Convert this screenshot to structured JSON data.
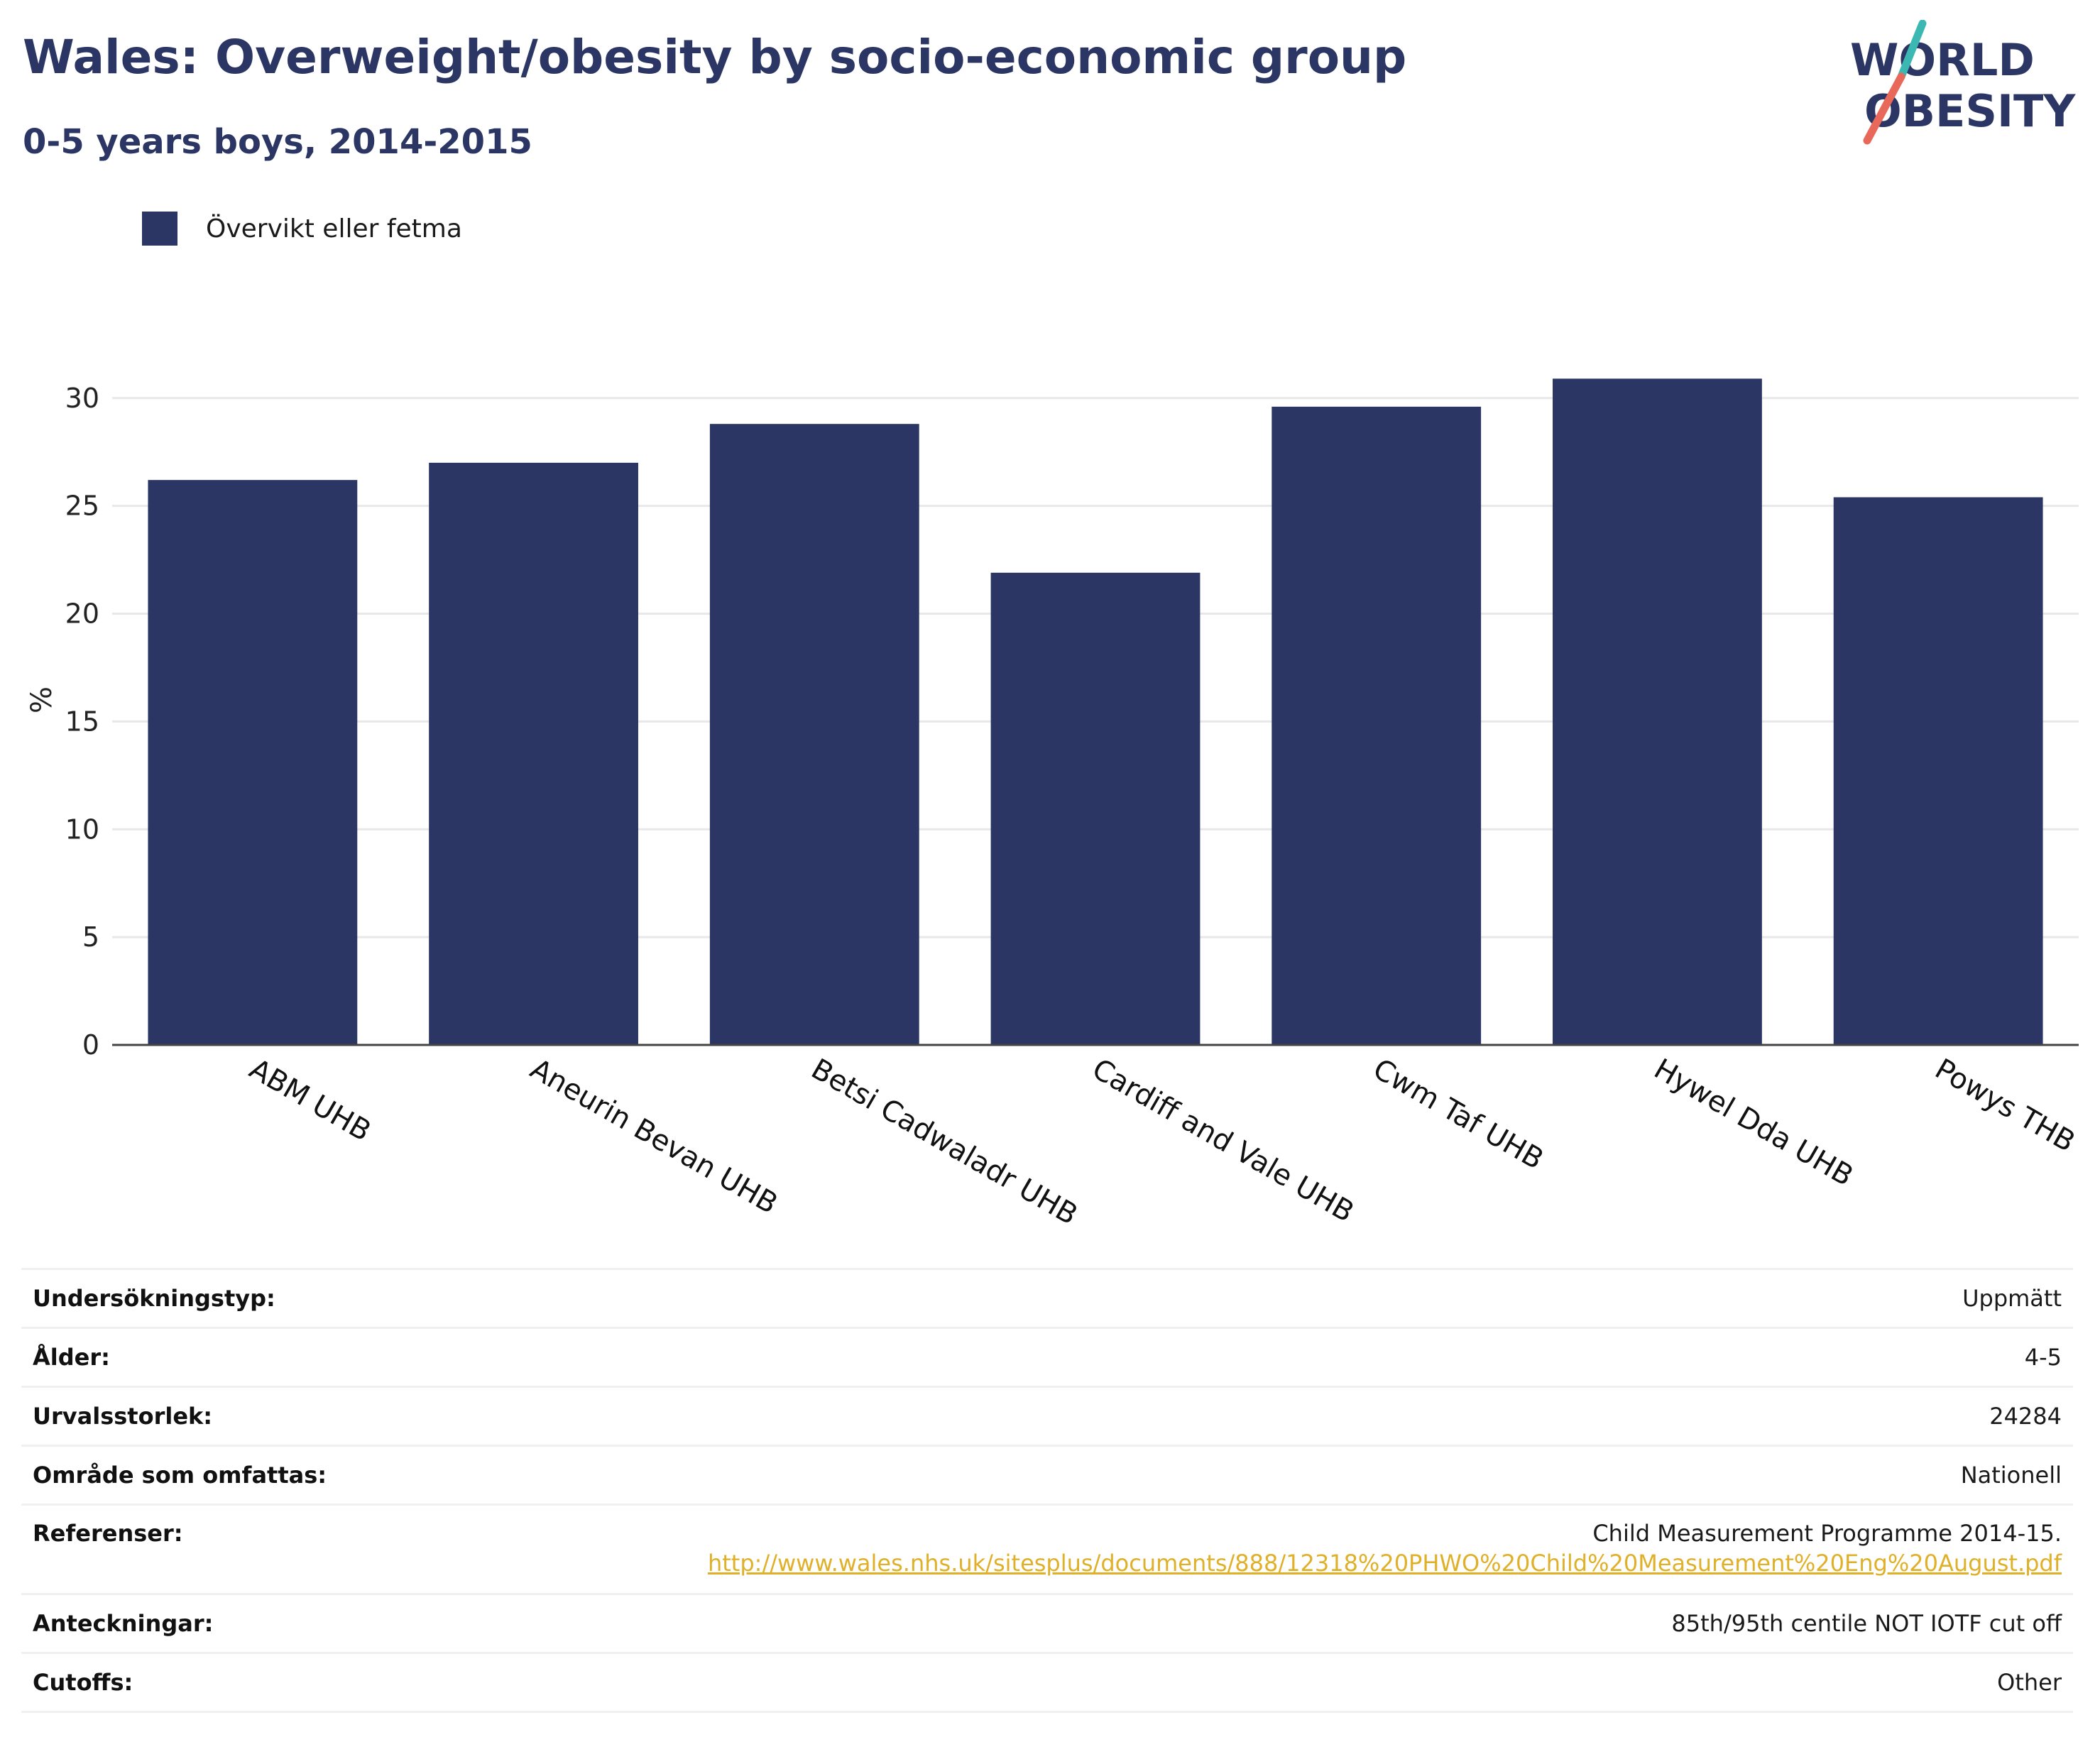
{
  "header": {
    "title": "Wales: Overweight/obesity by socio-economic group",
    "subtitle": "0-5 years boys, 2014-2015"
  },
  "logo": {
    "text_line1": "WORLD",
    "text_line2": "OBESITY",
    "name": "world-obesity-logo"
  },
  "legend": {
    "label": "Övervikt eller fetma",
    "color": "#2b3664"
  },
  "chart_data": {
    "type": "bar",
    "categories": [
      "ABM UHB",
      "Aneurin Bevan UHB",
      "Betsi Cadwaladr UHB",
      "Cardiff and Vale UHB",
      "Cwm Taf UHB",
      "Hywel Dda UHB",
      "Powys THB"
    ],
    "series": [
      {
        "name": "Övervikt eller fetma",
        "values": [
          26.2,
          27.0,
          28.8,
          21.9,
          29.6,
          30.9,
          25.4
        ],
        "color": "#2b3664"
      }
    ],
    "ylabel": "%",
    "ylim": [
      0,
      32
    ],
    "yticks": [
      0,
      5,
      10,
      15,
      20,
      25,
      30
    ],
    "grid": true,
    "legend_position": "top-left"
  },
  "info": {
    "survey_type": {
      "label": "Undersökningstyp:",
      "value": "Uppmätt"
    },
    "age": {
      "label": "Ålder:",
      "value": "4-5"
    },
    "sample_size": {
      "label": "Urvalsstorlek:",
      "value": "24284"
    },
    "area": {
      "label": "Område som omfattas:",
      "value": "Nationell"
    },
    "references": {
      "label": "Referenser:",
      "value": "Child Measurement Programme 2014-15.",
      "link": "http://www.wales.nhs.uk/sitesplus/documents/888/12318%20PHWO%20Child%20Measurement%20Eng%20August.pdf"
    },
    "notes": {
      "label": "Anteckningar:",
      "value": "85th/95th centile NOT IOTF cut off"
    },
    "cutoffs": {
      "label": "Cutoffs:",
      "value": "Other"
    }
  }
}
